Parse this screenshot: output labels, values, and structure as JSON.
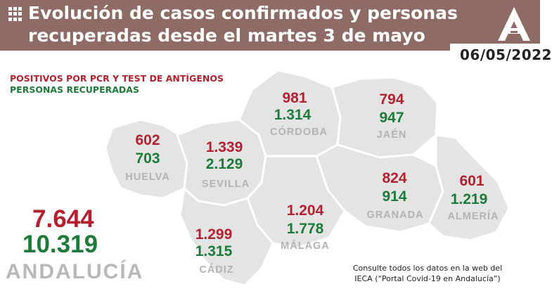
{
  "header": {
    "title_line1": "Evolución de casos confirmados y personas",
    "title_line2": "recuperadas desde el martes 3 de mayo",
    "date": "06/05/2022",
    "logo_icon": "junta-andalucia-logo-icon",
    "menu_icon": "grid-icon"
  },
  "legend": {
    "positives": "POSITIVOS POR PCR Y TEST DE ANTÍGENOS",
    "recovered": "PERSONAS RECUPERADAS"
  },
  "colors": {
    "header_bg": "#8f6b65",
    "positives": "#b5202e",
    "recovered": "#1d7b3a",
    "map_fill": "#e4e4e4",
    "province_name": "#b3b3b3"
  },
  "provinces": {
    "huelva": {
      "name": "HUELVA",
      "positives": "602",
      "recovered": "703"
    },
    "sevilla": {
      "name": "SEVILLA",
      "positives": "1.339",
      "recovered": "2.129"
    },
    "cordoba": {
      "name": "CÓRDOBA",
      "positives": "981",
      "recovered": "1.314"
    },
    "jaen": {
      "name": "JAÉN",
      "positives": "794",
      "recovered": "947"
    },
    "granada": {
      "name": "GRANADA",
      "positives": "824",
      "recovered": "914"
    },
    "almeria": {
      "name": "ALMERÍA",
      "positives": "601",
      "recovered": "1.219"
    },
    "malaga": {
      "name": "MÁLAGA",
      "positives": "1.204",
      "recovered": "1.778"
    },
    "cadiz": {
      "name": "CÁDIZ",
      "positives": "1.299",
      "recovered": "1.315"
    }
  },
  "andalucia": {
    "name": "ANDALUCÍA",
    "positives": "7.644",
    "recovered": "10.319"
  },
  "note": "Consulte todos los datos en la web del IECA (“Portal Covid-19 en Andalucía”)"
}
